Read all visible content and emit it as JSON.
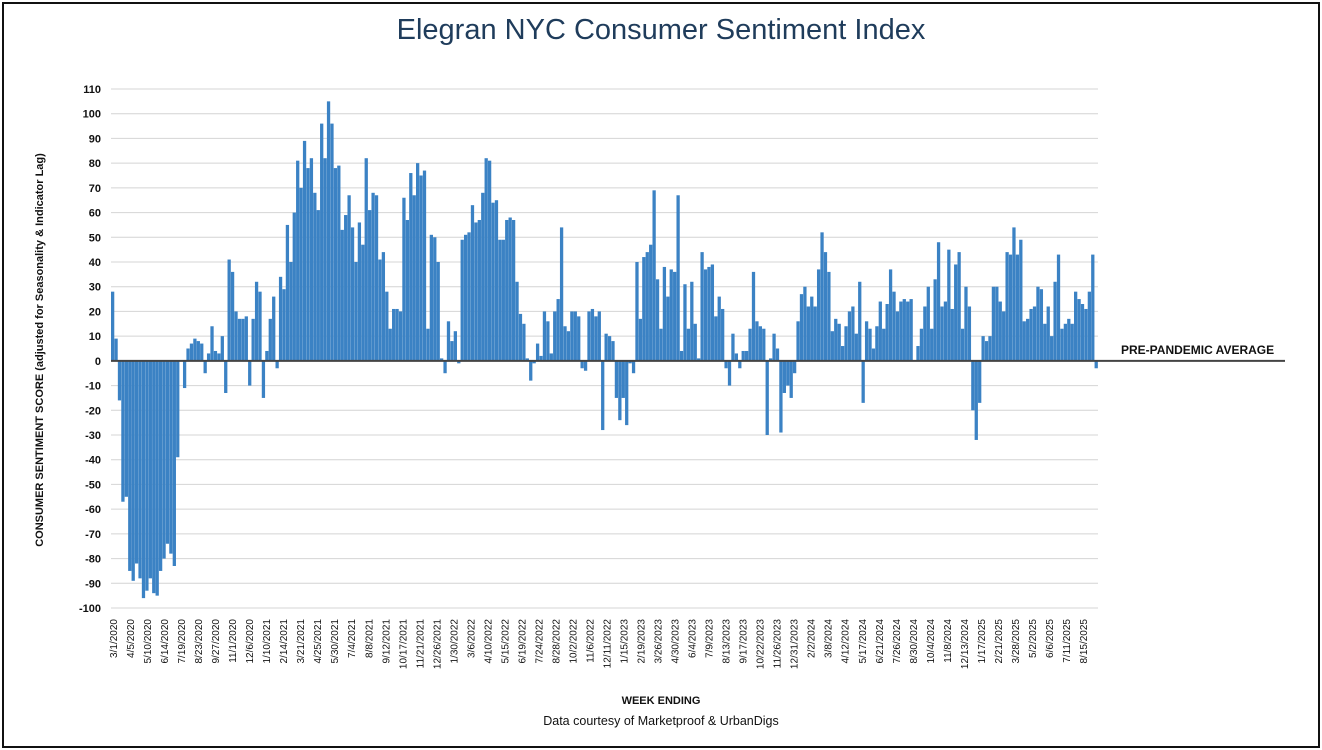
{
  "chart_data": {
    "type": "bar",
    "title": "Elegran NYC Consumer Sentiment Index",
    "xlabel": "WEEK ENDING",
    "ylabel": "CONSUMER SENTIMENT SCORE (adjusted for Seasonality & Indicator Lag)",
    "source": "Data courtesy of Marketproof & UrbanDigs",
    "ylim": [
      -100,
      110
    ],
    "yticks": [
      110,
      100,
      90,
      80,
      70,
      60,
      50,
      40,
      30,
      20,
      10,
      0,
      -10,
      -20,
      -30,
      -40,
      -50,
      -60,
      -70,
      -80,
      -90,
      -100
    ],
    "grid": true,
    "color": "#3b82c4",
    "reference_line": {
      "value": 0,
      "label": "PRE-PANDEMIC AVERAGE"
    },
    "xtick_labels": [
      "3/1/2020",
      "4/5/2020",
      "5/10/2020",
      "6/14/2020",
      "7/19/2020",
      "8/23/2020",
      "9/27/2020",
      "11/1/2020",
      "12/6/2020",
      "1/10/2021",
      "2/14/2021",
      "3/21/2021",
      "4/25/2021",
      "5/30/2021",
      "7/4/2021",
      "8/8/2021",
      "9/12/2021",
      "10/17/2021",
      "11/21/2021",
      "12/26/2021",
      "1/30/2022",
      "3/6/2022",
      "4/10/2022",
      "5/15/2022",
      "6/19/2022",
      "7/24/2022",
      "8/28/2022",
      "10/2/2022",
      "11/6/2022",
      "12/11/2022",
      "1/15/2023",
      "2/19/2023",
      "3/26/2023",
      "4/30/2023",
      "6/4/2023",
      "7/9/2023",
      "8/13/2023",
      "9/17/2023",
      "10/22/2023",
      "11/26/2023",
      "12/31/2023",
      "2/2/2024",
      "3/8/2024",
      "4/12/2024",
      "5/17/2024",
      "6/21/2024",
      "7/26/2024",
      "8/30/2024",
      "10/4/2024",
      "11/8/2024",
      "12/13/2024",
      "1/17/2025",
      "2/21/2025",
      "3/28/2025",
      "5/2/2025",
      "6/6/2025",
      "7/11/2025",
      "8/15/2025"
    ],
    "values": [
      28,
      9,
      -16,
      -57,
      -55,
      -85,
      -89,
      -82,
      -88,
      -96,
      -93,
      -88,
      -94,
      -95,
      -85,
      -80,
      -74,
      -78,
      -83,
      -39,
      0,
      -11,
      5,
      7,
      9,
      8,
      7,
      -5,
      3,
      14,
      4,
      3,
      10,
      -13,
      41,
      36,
      20,
      17,
      17,
      18,
      -10,
      17,
      32,
      28,
      -15,
      4,
      17,
      26,
      -3,
      34,
      29,
      55,
      40,
      60,
      81,
      70,
      89,
      78,
      82,
      68,
      61,
      96,
      82,
      105,
      96,
      78,
      79,
      53,
      59,
      67,
      54,
      40,
      56,
      47,
      82,
      61,
      68,
      67,
      41,
      44,
      28,
      13,
      21,
      21,
      20,
      66,
      57,
      76,
      67,
      80,
      75,
      77,
      13,
      51,
      50,
      40,
      1,
      -5,
      16,
      8,
      12,
      -1,
      49,
      51,
      52,
      63,
      56,
      57,
      68,
      82,
      81,
      64,
      65,
      49,
      49,
      57,
      58,
      57,
      32,
      19,
      15,
      1,
      -8,
      -1,
      7,
      2,
      20,
      16,
      3,
      20,
      25,
      54,
      14,
      12,
      20,
      20,
      18,
      -3,
      -4,
      20,
      21,
      18,
      20,
      -28,
      11,
      10,
      8,
      -15,
      -24,
      -15,
      -26,
      -1,
      -5,
      40,
      17,
      42,
      44,
      47,
      69,
      33,
      13,
      38,
      26,
      37,
      36,
      67,
      4,
      31,
      13,
      32,
      15,
      1,
      44,
      37,
      38,
      39,
      18,
      26,
      21,
      -3,
      -10,
      11,
      3,
      -3,
      4,
      4,
      13,
      36,
      16,
      14,
      13,
      -30,
      1,
      11,
      5,
      -29,
      -13,
      -10,
      -15,
      -5,
      16,
      27,
      30,
      22,
      26,
      22,
      37,
      52,
      44,
      36,
      12,
      17,
      15,
      6,
      14,
      20,
      22,
      11,
      32,
      -17,
      16,
      13,
      5,
      14,
      24,
      13,
      23,
      37,
      28,
      20,
      24,
      25,
      24,
      25,
      0,
      6,
      13,
      22,
      30,
      13,
      33,
      48,
      22,
      24,
      45,
      21,
      39,
      44,
      13,
      30,
      22,
      -20,
      -32,
      -17,
      10,
      8,
      10,
      30,
      30,
      24,
      20,
      44,
      43,
      54,
      43,
      49,
      16,
      17,
      21,
      22,
      30,
      29,
      15,
      22,
      10,
      32,
      43,
      13,
      15,
      17,
      15,
      28,
      25,
      23,
      21,
      28,
      43,
      -3
    ]
  }
}
